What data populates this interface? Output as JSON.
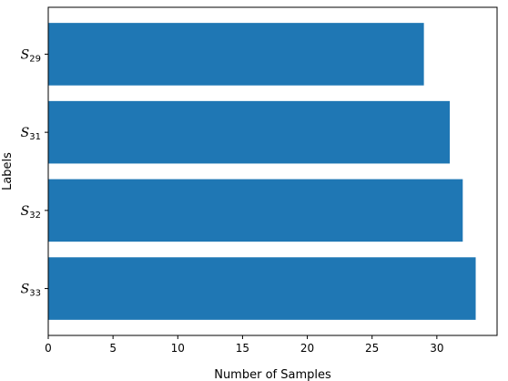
{
  "chart_data": {
    "type": "bar",
    "orientation": "horizontal",
    "categories": [
      {
        "base": "S",
        "sub": "29"
      },
      {
        "base": "S",
        "sub": "31"
      },
      {
        "base": "S",
        "sub": "32"
      },
      {
        "base": "S",
        "sub": "33"
      }
    ],
    "values": [
      29,
      31,
      32,
      33
    ],
    "xlabel": "Number of Samples",
    "ylabel": "Labels",
    "xlim": [
      0,
      34.65
    ],
    "xticks": [
      0,
      5,
      10,
      15,
      20,
      25,
      30
    ],
    "grid": false,
    "bar_color": "#1f77b4"
  }
}
